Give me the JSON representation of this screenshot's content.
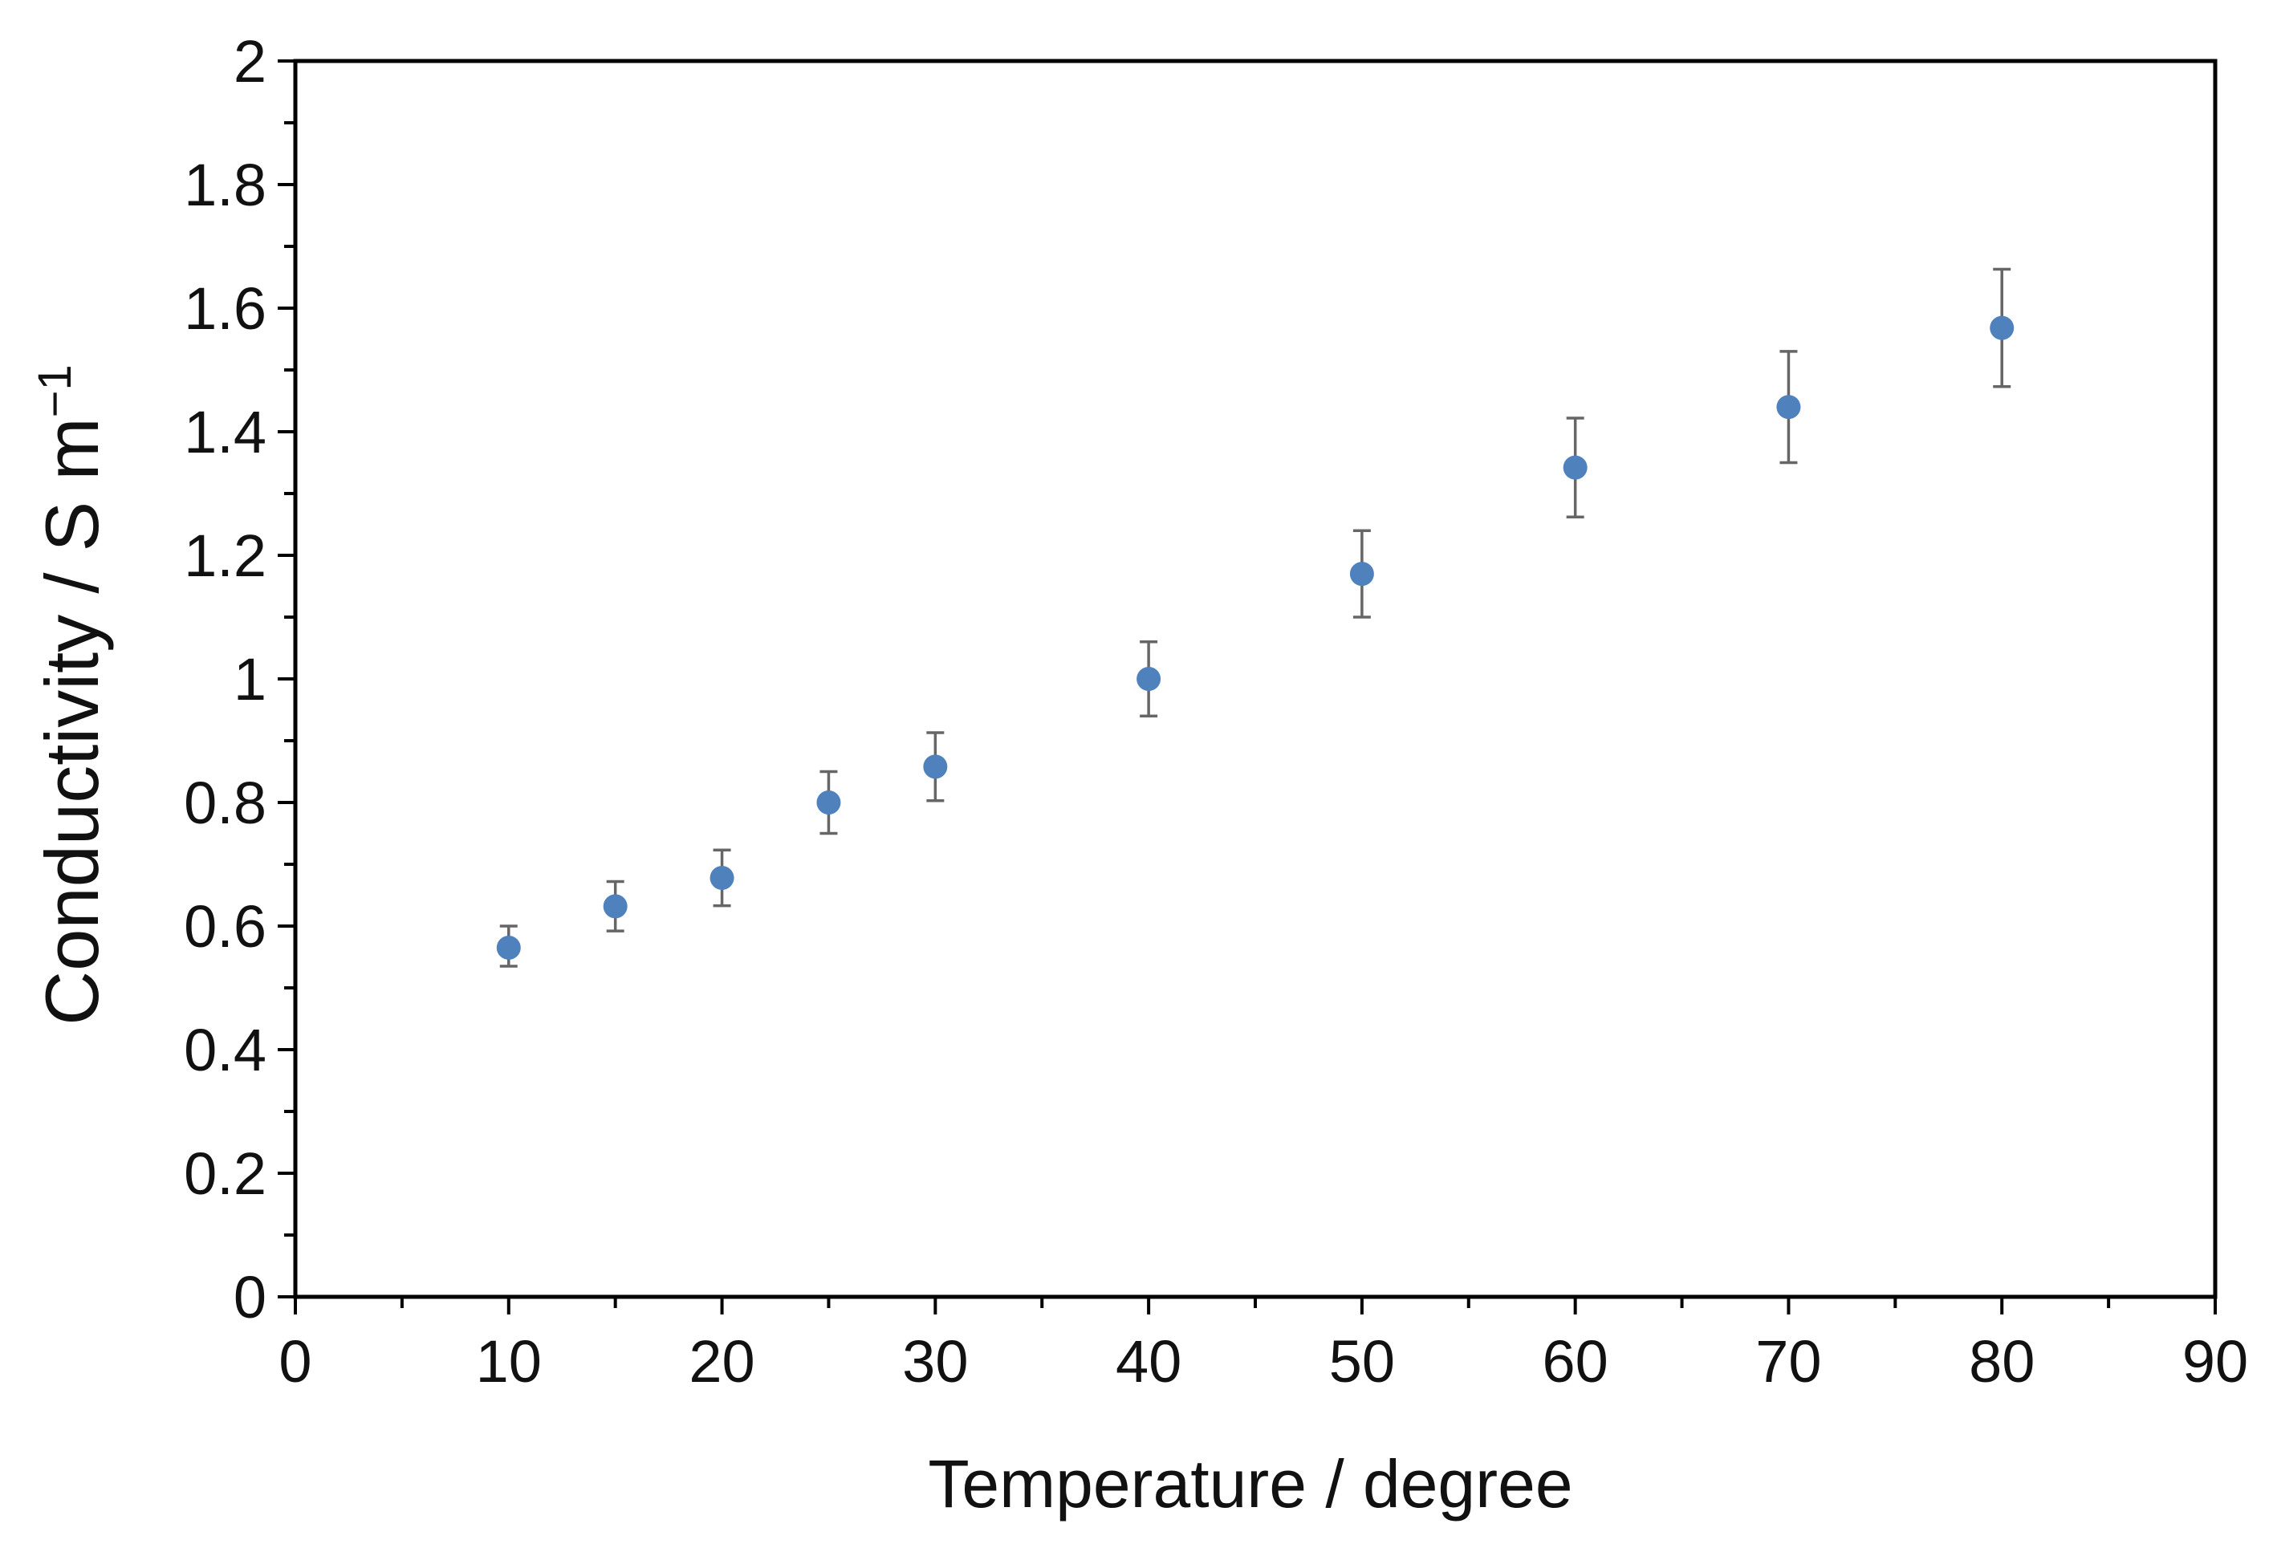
{
  "chart_data": {
    "type": "scatter",
    "xlabel": "Temperature / degree",
    "ylabel": {
      "main": "Conductivity / S m",
      "superscript": "−1"
    },
    "xlim": [
      0,
      90
    ],
    "ylim": [
      0,
      2
    ],
    "x_ticks": [
      0,
      10,
      20,
      30,
      40,
      50,
      60,
      70,
      80,
      90
    ],
    "x_tick_labels": [
      "0",
      "10",
      "20",
      "30",
      "40",
      "50",
      "60",
      "70",
      "80",
      "90"
    ],
    "x_minor_step": 5,
    "y_ticks": [
      0,
      0.2,
      0.4,
      0.6,
      0.8,
      1,
      1.2,
      1.4,
      1.6,
      1.8,
      2
    ],
    "y_tick_labels": [
      "0",
      "0.2",
      "0.4",
      "0.6",
      "0.8",
      "1",
      "1.2",
      "1.4",
      "1.6",
      "1.8",
      "2"
    ],
    "y_minor_step": 0.1,
    "grid": false,
    "legend": "none",
    "series": [
      {
        "color": "#4f81bd",
        "error_bar_color": "#666666",
        "points": [
          {
            "x": 10,
            "y": 0.565,
            "err_low": 0.03,
            "err_high": 0.035
          },
          {
            "x": 15,
            "y": 0.632,
            "err_low": 0.04,
            "err_high": 0.04
          },
          {
            "x": 20,
            "y": 0.678,
            "err_low": 0.045,
            "err_high": 0.045
          },
          {
            "x": 25,
            "y": 0.8,
            "err_low": 0.05,
            "err_high": 0.05
          },
          {
            "x": 30,
            "y": 0.858,
            "err_low": 0.055,
            "err_high": 0.055
          },
          {
            "x": 40,
            "y": 1.0,
            "err_low": 0.06,
            "err_high": 0.06
          },
          {
            "x": 50,
            "y": 1.17,
            "err_low": 0.07,
            "err_high": 0.07
          },
          {
            "x": 60,
            "y": 1.342,
            "err_low": 0.08,
            "err_high": 0.08
          },
          {
            "x": 70,
            "y": 1.44,
            "err_low": 0.09,
            "err_high": 0.09
          },
          {
            "x": 80,
            "y": 1.568,
            "err_low": 0.095,
            "err_high": 0.095
          }
        ]
      }
    ]
  }
}
